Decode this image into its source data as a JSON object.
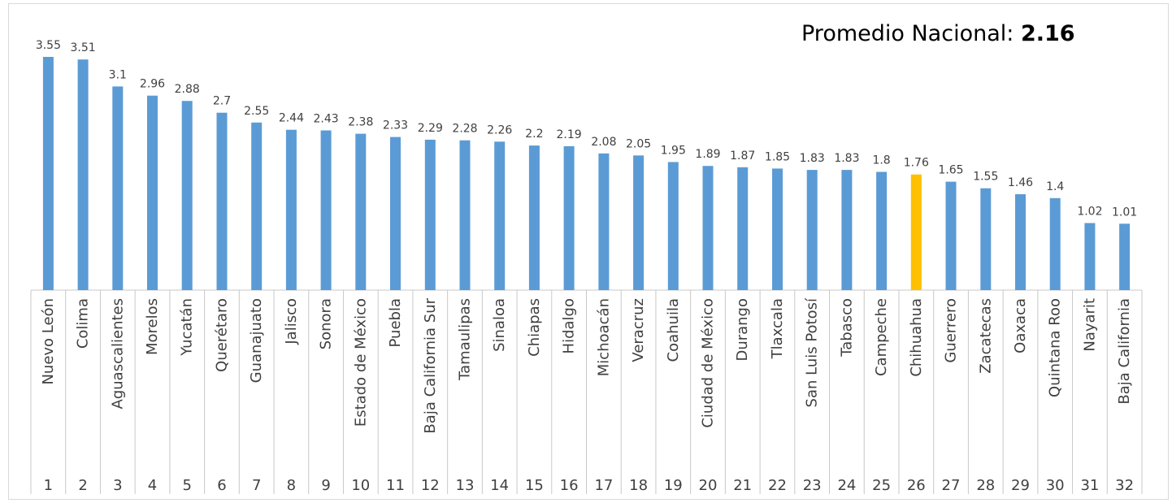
{
  "chart_data": {
    "type": "bar",
    "title": "",
    "xlabel": "",
    "ylabel": "",
    "ylim": [
      0,
      3.55
    ],
    "grid": false,
    "highlight_category": "Chihuahua",
    "colors": {
      "bar": "#5b9bd5",
      "highlight": "#ffc000",
      "axis": "#c8c8c8",
      "text": "#404040"
    },
    "annotation": {
      "label": "Promedio Nacional: ",
      "value": "2.16"
    },
    "categories": [
      "Nuevo León",
      "Colima",
      "Aguascalientes",
      "Morelos",
      "Yucatán",
      "Querétaro",
      "Guanajuato",
      "Jalisco",
      "Sonora",
      "Estado de México",
      "Puebla",
      "Baja California Sur",
      "Tamaulipas",
      "Sinaloa",
      "Chiapas",
      "Hidalgo",
      "Michoacán",
      "Veracruz",
      "Coahuila",
      "Ciudad de México",
      "Durango",
      "Tlaxcala",
      "San Luis Potosí",
      "Tabasco",
      "Campeche",
      "Chihuahua",
      "Guerrero",
      "Zacatecas",
      "Oaxaca",
      "Quintana Roo",
      "Nayarit",
      "Baja California"
    ],
    "ranks": [
      "1",
      "2",
      "3",
      "4",
      "5",
      "6",
      "7",
      "8",
      "9",
      "10",
      "11",
      "12",
      "13",
      "14",
      "15",
      "16",
      "17",
      "18",
      "19",
      "20",
      "21",
      "22",
      "23",
      "24",
      "25",
      "26",
      "27",
      "28",
      "29",
      "30",
      "31",
      "32"
    ],
    "values": [
      3.55,
      3.51,
      3.1,
      2.96,
      2.88,
      2.7,
      2.55,
      2.44,
      2.43,
      2.38,
      2.33,
      2.29,
      2.28,
      2.26,
      2.2,
      2.19,
      2.08,
      2.05,
      1.95,
      1.89,
      1.87,
      1.85,
      1.83,
      1.83,
      1.8,
      1.76,
      1.65,
      1.55,
      1.46,
      1.4,
      1.02,
      1.01
    ]
  }
}
